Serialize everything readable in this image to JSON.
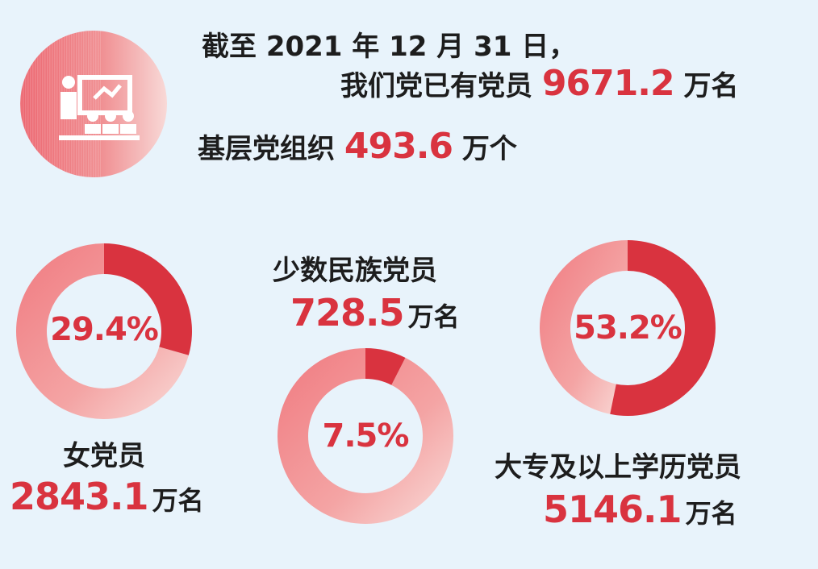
{
  "header": {
    "line1": "截至 2021 年 12 月 31 日，",
    "line2_prefix": "我们党已有党员",
    "line2_value": "9671.2",
    "line2_unit": "万名",
    "line3_prefix": "基层党组织",
    "line3_value": "493.6",
    "line3_unit": "万个"
  },
  "icon": {
    "name": "classroom-icon",
    "color_start": "#ee6a72",
    "color_end": "#f8d9d7"
  },
  "colors": {
    "accent": "#d9333f",
    "ring_light": "#f4a4a4",
    "ring_pale": "#f9dcd9",
    "background": "#e8f3fb"
  },
  "chart_data": [
    {
      "type": "pie",
      "title": "女党员",
      "value_text": "2843.1",
      "unit": "万名",
      "percent_label": "29.4%",
      "values": [
        29.4,
        70.6
      ]
    },
    {
      "type": "pie",
      "title": "少数民族党员",
      "value_text": "728.5",
      "unit": "万名",
      "percent_label": "7.5%",
      "values": [
        7.5,
        92.5
      ]
    },
    {
      "type": "pie",
      "title": "大专及以上学历党员",
      "value_text": "5146.1",
      "unit": "万名",
      "percent_label": "53.2%",
      "values": [
        53.2,
        46.8
      ]
    }
  ]
}
